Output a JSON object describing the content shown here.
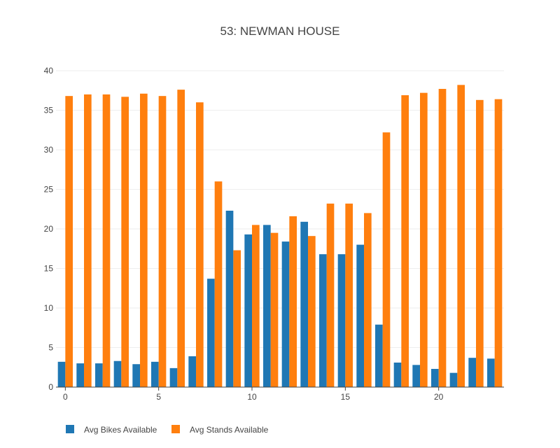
{
  "chart_data": {
    "type": "bar",
    "title": "53: NEWMAN HOUSE",
    "xlabel": "",
    "ylabel": "",
    "x": [
      0,
      1,
      2,
      3,
      4,
      5,
      6,
      7,
      8,
      9,
      10,
      11,
      12,
      13,
      14,
      15,
      16,
      17,
      18,
      19,
      20,
      21,
      22,
      23
    ],
    "x_ticks": [
      0,
      5,
      10,
      15,
      20
    ],
    "y_ticks": [
      0,
      5,
      10,
      15,
      20,
      25,
      30,
      35,
      40
    ],
    "ylim": [
      0,
      40
    ],
    "grid": true,
    "legend_position": "bottom-left",
    "series": [
      {
        "name": "Avg Bikes Available",
        "color": "#1f77b4",
        "values": [
          3.2,
          3.0,
          3.0,
          3.3,
          2.9,
          3.2,
          2.4,
          3.9,
          13.7,
          22.3,
          19.3,
          20.5,
          18.4,
          20.9,
          16.8,
          16.8,
          18.0,
          7.9,
          3.1,
          2.8,
          2.3,
          1.8,
          3.7,
          3.6
        ]
      },
      {
        "name": "Avg Stands Available",
        "color": "#ff7f0e",
        "values": [
          36.8,
          37.0,
          37.0,
          36.7,
          37.1,
          36.8,
          37.6,
          36.0,
          26.0,
          17.3,
          20.5,
          19.5,
          21.6,
          19.1,
          23.2,
          23.2,
          22.0,
          32.2,
          36.9,
          37.2,
          37.7,
          38.2,
          36.3,
          36.4
        ]
      }
    ]
  }
}
